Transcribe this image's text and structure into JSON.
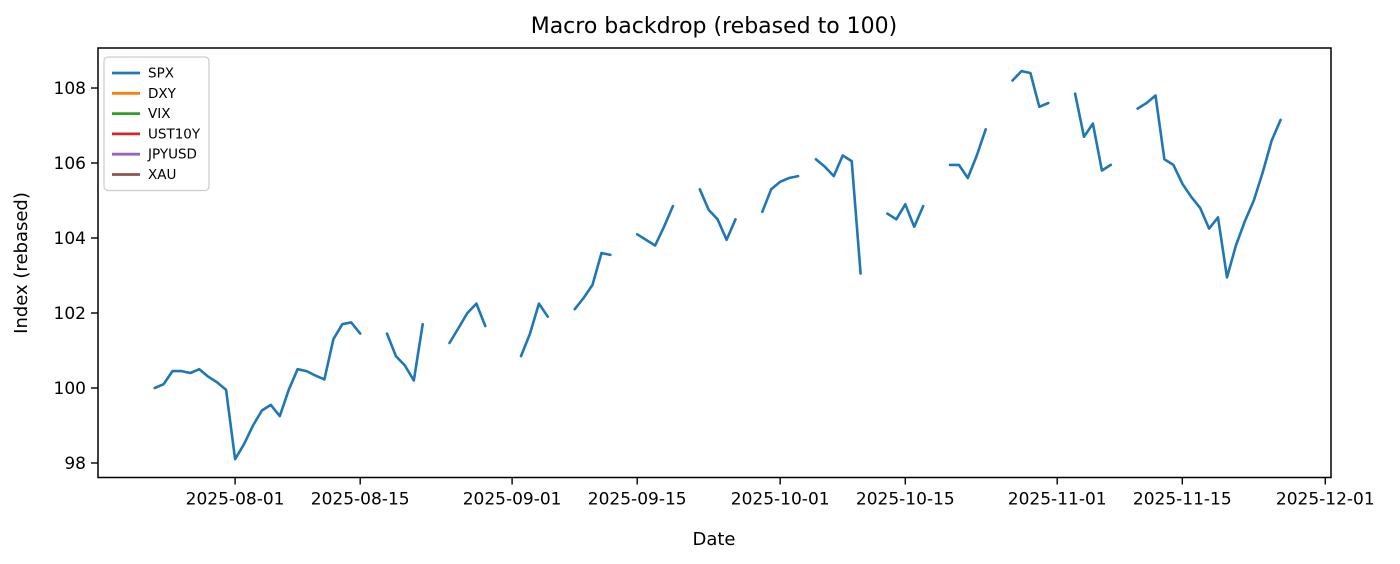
{
  "figure": {
    "title": "Macro backdrop (rebased to 100)",
    "xlabel": "Date",
    "ylabel": "Index (rebased)"
  },
  "chart_data": {
    "type": "line",
    "title": "Macro backdrop (rebased to 100)",
    "xlabel": "Date",
    "ylabel": "Index (rebased)",
    "grid": false,
    "legend_position": "upper-left",
    "background_color": "#ffffff",
    "spine_color": "#000000",
    "x_unit": "daily dates",
    "x_start_date": "2025-07-23",
    "xlim_days": [
      -6.34,
      131.64
    ],
    "ylim": [
      97.613,
      109.067
    ],
    "y_ticks": [
      98,
      100,
      102,
      104,
      106,
      108
    ],
    "x_ticks": [
      {
        "label": "2025-08-01",
        "day": 9
      },
      {
        "label": "2025-08-15",
        "day": 23
      },
      {
        "label": "2025-09-01",
        "day": 40
      },
      {
        "label": "2025-09-15",
        "day": 54
      },
      {
        "label": "2025-10-01",
        "day": 70
      },
      {
        "label": "2025-10-15",
        "day": 84
      },
      {
        "label": "2025-11-01",
        "day": 101
      },
      {
        "label": "2025-11-15",
        "day": 115
      },
      {
        "label": "2025-12-01",
        "day": 131
      }
    ],
    "series": [
      {
        "name": "SPX",
        "color": "#1f77b4",
        "values": [
          100.0,
          100.1,
          100.45,
          100.45,
          100.4,
          100.5,
          100.3,
          100.15,
          99.95,
          98.1,
          98.5,
          99.0,
          99.4,
          99.55,
          99.25,
          99.95,
          100.5,
          100.45,
          100.33,
          100.23,
          101.3,
          101.7,
          101.75,
          101.45,
          null,
          null,
          101.45,
          100.85,
          100.6,
          100.2,
          101.7,
          null,
          null,
          101.2,
          101.6,
          102.0,
          102.25,
          101.65,
          null,
          null,
          null,
          100.85,
          101.45,
          102.25,
          101.9,
          null,
          null,
          102.1,
          102.4,
          102.75,
          103.6,
          103.55,
          null,
          null,
          104.1,
          103.95,
          103.8,
          104.3,
          104.85,
          null,
          null,
          105.3,
          104.75,
          104.5,
          103.95,
          104.5,
          null,
          null,
          104.7,
          105.3,
          105.5,
          105.6,
          105.65,
          null,
          106.1,
          105.9,
          105.65,
          106.2,
          106.05,
          103.05,
          null,
          null,
          104.65,
          104.5,
          104.9,
          104.3,
          104.85,
          null,
          null,
          105.95,
          105.95,
          105.6,
          106.2,
          106.9,
          null,
          null,
          108.2,
          108.45,
          108.4,
          107.5,
          107.6,
          null,
          null,
          107.85,
          106.7,
          107.05,
          105.8,
          105.95,
          null,
          null,
          107.45,
          107.6,
          107.8,
          106.1,
          105.95,
          105.45,
          105.1,
          104.8,
          104.25,
          104.55,
          102.95,
          103.8,
          104.45,
          105.0,
          105.75,
          106.6,
          107.15
        ]
      },
      {
        "name": "DXY",
        "color": "#ff7f0e",
        "values": []
      },
      {
        "name": "VIX",
        "color": "#2ca02c",
        "values": []
      },
      {
        "name": "UST10Y",
        "color": "#d62728",
        "values": []
      },
      {
        "name": "JPYUSD",
        "color": "#9467bd",
        "values": []
      },
      {
        "name": "XAU",
        "color": "#8c564b",
        "values": []
      }
    ]
  }
}
